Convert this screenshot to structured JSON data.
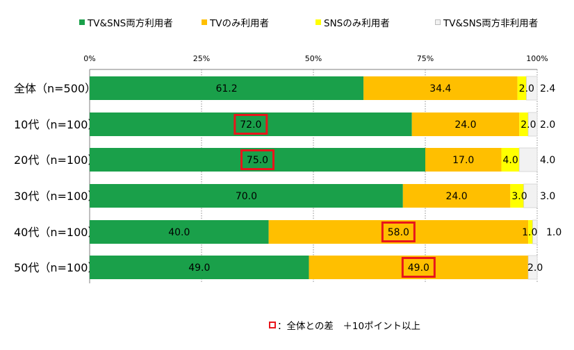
{
  "chart_data": {
    "type": "bar",
    "orientation": "horizontal",
    "stacked": true,
    "categories": [
      "全体（n=500）",
      "10代（n=100）",
      "20代（n=100）",
      "30代（n=100）",
      "40代（n=100）",
      "50代（n=100）"
    ],
    "series": [
      {
        "name": "TV&SNS両方利用者",
        "color": "#1aa04a",
        "values": [
          61.2,
          72.0,
          75.0,
          70.0,
          40.0,
          49.0
        ]
      },
      {
        "name": "TVのみ利用者",
        "color": "#ffbf00",
        "values": [
          34.4,
          24.0,
          17.0,
          24.0,
          58.0,
          49.0
        ]
      },
      {
        "name": "SNSのみ利用者",
        "color": "#ffff00",
        "values": [
          2.0,
          2.0,
          4.0,
          3.0,
          1.0,
          0
        ]
      },
      {
        "name": "TV&SNS両方非利用者",
        "color": "#f2f2f2",
        "values": [
          2.4,
          2.0,
          4.0,
          3.0,
          1.0,
          2.0
        ]
      }
    ],
    "labels": [
      [
        "61.2",
        "34.4",
        "2.0",
        "2.4"
      ],
      [
        "72.0",
        "24.0",
        "2.0",
        "2.0"
      ],
      [
        "75.0",
        "17.0",
        "4.0",
        "4.0"
      ],
      [
        "70.0",
        "24.0",
        "3.0",
        "3.0"
      ],
      [
        "40.0",
        "58.0",
        "1.0",
        "1.0"
      ],
      [
        "49.0",
        "49.0",
        "",
        "2.0"
      ]
    ],
    "highlighted": [
      {
        "row": 1,
        "series": 0
      },
      {
        "row": 2,
        "series": 0
      },
      {
        "row": 4,
        "series": 1
      },
      {
        "row": 5,
        "series": 1
      }
    ],
    "highlight_color": "#e8151b",
    "xticks": [
      "0%",
      "25%",
      "50%",
      "75%",
      "100%"
    ],
    "xlim": [
      0,
      100
    ],
    "grid": true,
    "legend_position": "top"
  },
  "footnote": {
    "symbol": "□",
    "text": "：全体との差　＋10ポイント以上"
  }
}
